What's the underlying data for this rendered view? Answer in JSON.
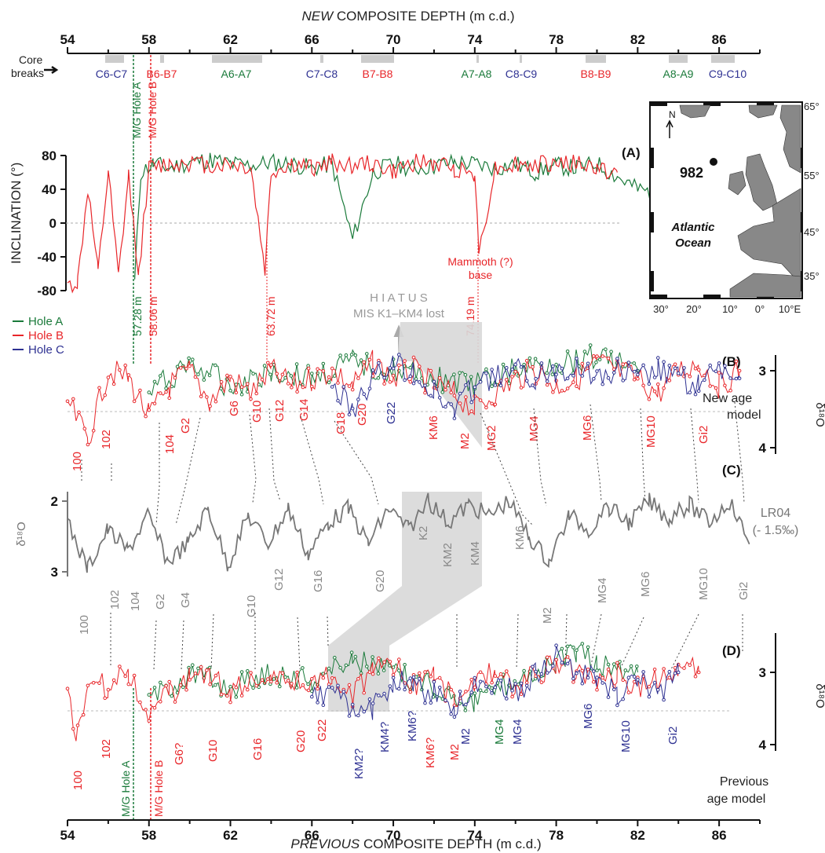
{
  "top_axis": {
    "title_italic": "NEW",
    "title_rest": " COMPOSITE  DEPTH  (m c.d.)",
    "ticks": [
      "54",
      "58",
      "62",
      "66",
      "70",
      "74",
      "78",
      "82",
      "86"
    ]
  },
  "bottom_axis": {
    "title_italic": "PREVIOUS",
    "title_rest": " COMPOSITE  DEPTH  (m c.d.)",
    "ticks": [
      "54",
      "58",
      "62",
      "66",
      "70",
      "74",
      "78",
      "82",
      "86"
    ]
  },
  "core_breaks": {
    "label_line1": "Core",
    "label_line2": "breaks",
    "items": [
      {
        "label": "C6-C7",
        "color": "#2e3192"
      },
      {
        "label": "B6-B7",
        "color": "#e8262a"
      },
      {
        "label": "A6-A7",
        "color": "#1a7a3a"
      },
      {
        "label": "C7-C8",
        "color": "#2e3192"
      },
      {
        "label": "B7-B8",
        "color": "#e8262a"
      },
      {
        "label": "A7-A8",
        "color": "#1a7a3a"
      },
      {
        "label": "C8-C9",
        "color": "#2e3192"
      },
      {
        "label": "B8-B9",
        "color": "#e8262a"
      },
      {
        "label": "A8-A9",
        "color": "#1a7a3a"
      },
      {
        "label": "C9-C10",
        "color": "#2e3192"
      }
    ]
  },
  "colors": {
    "hole_a": "#1a7a3a",
    "hole_b": "#e8262a",
    "hole_c": "#2e3192",
    "lr04": "#777777",
    "grey_band": "#d8d8d8"
  },
  "annotations": {
    "mg_hole_a": "M/G Hole A",
    "mg_hole_b": "M/G Hole B",
    "depth_5728": "57.28 m",
    "depth_5806": "58.06 m",
    "depth_6372": "63.72 m",
    "depth_7419": "74.19 m",
    "mammoth_1": "Mammoth (?)",
    "mammoth_2": "base",
    "hiatus_1": "H I A T U S",
    "hiatus_2": "MIS K1–KM4 lost",
    "mg_hole_a_d": "M/G Hole A",
    "mg_hole_b_d": "M/G Hole B"
  },
  "legend": {
    "hole_a": "Hole A",
    "hole_b": "Hole B",
    "hole_c": "Hole C"
  },
  "panel_a": {
    "label": "(A)",
    "ylabel": "INCLINATION (°)",
    "yticks": [
      "80",
      "40",
      "0",
      "-40",
      "-80"
    ]
  },
  "panel_b": {
    "label": "(B)",
    "right_label_1": "New age",
    "right_label_2": "model",
    "yticks": [
      "3",
      "4"
    ],
    "ylabel": "δ¹⁸O",
    "stage_labels": [
      {
        "text": "100",
        "color": "#e8262a"
      },
      {
        "text": "102",
        "color": "#e8262a"
      },
      {
        "text": "104",
        "color": "#e8262a"
      },
      {
        "text": "G2",
        "color": "#e8262a"
      },
      {
        "text": "G6",
        "color": "#e8262a"
      },
      {
        "text": "G10",
        "color": "#e8262a"
      },
      {
        "text": "G12",
        "color": "#e8262a"
      },
      {
        "text": "G14",
        "color": "#e8262a"
      },
      {
        "text": "G18",
        "color": "#e8262a"
      },
      {
        "text": "G20",
        "color": "#e8262a"
      },
      {
        "text": "G22",
        "color": "#2e3192"
      },
      {
        "text": "KM6",
        "color": "#e8262a"
      },
      {
        "text": "M2",
        "color": "#e8262a"
      },
      {
        "text": "MG2",
        "color": "#e8262a"
      },
      {
        "text": "MG4",
        "color": "#e8262a"
      },
      {
        "text": "MG6",
        "color": "#e8262a"
      },
      {
        "text": "MG10",
        "color": "#e8262a"
      },
      {
        "text": "Gi2",
        "color": "#e8262a"
      }
    ]
  },
  "panel_c": {
    "label": "(C)",
    "right_label_1": "LR04",
    "right_label_2": "(- 1.5‰)",
    "yticks": [
      "2",
      "3"
    ],
    "ylabel": "δ¹⁸O",
    "stage_labels": [
      "100",
      "102",
      "104",
      "G2",
      "G4",
      "G10",
      "G12",
      "G16",
      "G20",
      "K2",
      "KM2",
      "KM4",
      "KM6",
      "M2",
      "MG4",
      "MG6",
      "MG10",
      "Gi2"
    ]
  },
  "panel_d": {
    "label": "(D)",
    "right_label_1": "Previous",
    "right_label_2": "age model",
    "yticks": [
      "3",
      "4"
    ],
    "ylabel": "δ¹⁸O",
    "stage_labels": [
      {
        "text": "100",
        "color": "#e8262a"
      },
      {
        "text": "102",
        "color": "#e8262a"
      },
      {
        "text": "G6?",
        "color": "#e8262a"
      },
      {
        "text": "G10",
        "color": "#e8262a"
      },
      {
        "text": "G16",
        "color": "#e8262a"
      },
      {
        "text": "G20",
        "color": "#e8262a"
      },
      {
        "text": "G22",
        "color": "#e8262a"
      },
      {
        "text": "KM2?",
        "color": "#2e3192"
      },
      {
        "text": "KM4?",
        "color": "#2e3192"
      },
      {
        "text": "KM6?",
        "color": "#2e3192"
      },
      {
        "text": "KM6?",
        "color": "#e8262a"
      },
      {
        "text": "M2",
        "color": "#e8262a"
      },
      {
        "text": "M2",
        "color": "#2e3192"
      },
      {
        "text": "MG4",
        "color": "#1a7a3a"
      },
      {
        "text": "MG4",
        "color": "#2e3192"
      },
      {
        "text": "MG6",
        "color": "#2e3192"
      },
      {
        "text": "MG10",
        "color": "#2e3192"
      },
      {
        "text": "Gi2",
        "color": "#2e3192"
      }
    ]
  },
  "map": {
    "site": "982",
    "ocean_1": "Atlantic",
    "ocean_2": "Ocean",
    "north": "N",
    "lat_ticks": [
      "65°",
      "55°",
      "45°",
      "35°"
    ],
    "lon_ticks": [
      "30°",
      "20°",
      "10°",
      "0°",
      "10°E"
    ]
  },
  "chart_data": [
    {
      "type": "line",
      "title": "(A)",
      "xlabel": "NEW COMPOSITE DEPTH (m c.d.)",
      "ylabel": "INCLINATION (°)",
      "xlim": [
        54,
        88
      ],
      "ylim": [
        -80,
        80
      ],
      "series": [
        {
          "name": "Hole A",
          "x": [
            57.3,
            57.6,
            58.2,
            59,
            60,
            61,
            62,
            63,
            64,
            65,
            66,
            67,
            68,
            69,
            70,
            71,
            72,
            73,
            74,
            75,
            76,
            77,
            78,
            79,
            80,
            81,
            82,
            83,
            84,
            85
          ],
          "y": [
            -70,
            60,
            70,
            65,
            72,
            75,
            70,
            68,
            72,
            70,
            65,
            70,
            -20,
            60,
            70,
            65,
            68,
            72,
            70,
            65,
            70,
            60,
            68,
            65,
            70,
            55,
            40,
            35,
            45,
            60
          ]
        },
        {
          "name": "Hole B",
          "x": [
            54,
            54.5,
            55,
            55.5,
            56,
            56.5,
            57,
            57.5,
            58,
            59,
            60,
            61,
            62,
            63,
            63.7,
            64,
            65,
            66,
            67,
            68,
            69,
            70,
            71,
            72,
            73,
            74,
            74.2,
            75,
            76,
            77,
            78,
            79,
            80,
            81
          ],
          "y": [
            -75,
            -70,
            40,
            -60,
            60,
            -65,
            55,
            -60,
            65,
            70,
            72,
            68,
            70,
            65,
            -55,
            60,
            70,
            65,
            72,
            68,
            70,
            60,
            72,
            70,
            65,
            60,
            -35,
            65,
            70,
            68,
            72,
            70,
            65,
            60
          ]
        }
      ]
    },
    {
      "type": "line",
      "title": "(B)",
      "ylabel": "δ¹⁸O",
      "xlim": [
        54,
        88
      ],
      "ylim": [
        4,
        2.4
      ],
      "series": [
        {
          "name": "Hole A",
          "x": [
            58,
            60,
            62,
            64,
            66,
            68,
            70,
            72,
            74,
            76,
            78,
            80,
            82
          ],
          "y": [
            3.3,
            2.9,
            3.2,
            3.0,
            3.1,
            2.9,
            3.0,
            3.1,
            3.2,
            3.0,
            2.9,
            2.8,
            3.0
          ]
        },
        {
          "name": "Hole B",
          "x": [
            54,
            55,
            56,
            57,
            58,
            59,
            60,
            61,
            62,
            63,
            64,
            65,
            66,
            67,
            68,
            69,
            70,
            71,
            72,
            73,
            74,
            75,
            76,
            77,
            78,
            79,
            80,
            81,
            82,
            83,
            84,
            85,
            86,
            87
          ],
          "y": [
            3.4,
            3.9,
            3.0,
            3.1,
            3.6,
            3.2,
            3.0,
            3.4,
            3.1,
            3.3,
            3.0,
            3.2,
            3.1,
            3.0,
            3.2,
            2.9,
            3.1,
            3.0,
            3.2,
            3.3,
            3.5,
            3.3,
            3.1,
            3.0,
            3.2,
            3.1,
            2.9,
            3.0,
            3.1,
            3.3,
            3.0,
            2.9,
            3.2,
            3.0
          ]
        },
        {
          "name": "Hole C",
          "x": [
            67,
            68,
            69,
            70,
            71,
            72,
            73,
            74,
            75,
            76,
            77,
            78,
            79,
            80,
            81,
            82,
            83,
            84,
            85,
            86,
            87
          ],
          "y": [
            3.2,
            3.5,
            3.1,
            2.9,
            3.0,
            3.3,
            3.5,
            3.2,
            3.1,
            3.0,
            3.1,
            3.0,
            2.9,
            3.1,
            3.0,
            3.1,
            3.0,
            3.1,
            3.2,
            3.0,
            3.1
          ]
        }
      ]
    },
    {
      "type": "line",
      "title": "(C)",
      "ylabel": "δ¹⁸O",
      "series": [
        {
          "name": "LR04",
          "x": [
            0,
            1,
            2,
            3,
            4,
            5,
            6,
            7,
            8,
            9,
            10,
            11,
            12,
            13,
            14,
            15,
            16,
            17,
            18,
            19,
            20,
            21,
            22,
            23,
            24,
            25,
            26,
            27,
            28,
            29,
            30,
            31,
            32,
            33,
            34
          ],
          "y": [
            2.3,
            2.95,
            2.4,
            2.7,
            2.2,
            2.85,
            2.6,
            2.1,
            2.9,
            2.2,
            2.6,
            2.1,
            2.75,
            2.3,
            2.1,
            2.6,
            2.1,
            2.4,
            2.0,
            2.3,
            2.05,
            2.2,
            2.0,
            2.5,
            2.85,
            2.2,
            2.4,
            2.1,
            2.3,
            2.0,
            2.25,
            2.05,
            2.3,
            2.0,
            2.6
          ]
        }
      ]
    },
    {
      "type": "line",
      "title": "(D)",
      "xlabel": "PREVIOUS COMPOSITE DEPTH (m c.d.)",
      "ylabel": "δ¹⁸O",
      "xlim": [
        54,
        88
      ],
      "ylim": [
        4,
        2.4
      ],
      "series": [
        {
          "name": "Hole A",
          "x": [
            58,
            60,
            62,
            64,
            66,
            68,
            70,
            72,
            74,
            76,
            78,
            79,
            80,
            82
          ],
          "y": [
            3.4,
            3.0,
            3.2,
            3.0,
            3.1,
            2.8,
            3.0,
            3.2,
            3.4,
            3.1,
            2.9,
            2.7,
            2.9,
            3.0
          ]
        },
        {
          "name": "Hole B",
          "x": [
            54,
            54.5,
            55,
            56,
            57,
            58,
            59,
            60,
            61,
            62,
            63,
            64,
            65,
            66,
            67,
            68,
            69,
            70,
            71,
            72,
            73,
            74,
            75,
            76,
            77,
            78,
            79,
            80,
            81,
            82,
            83,
            84,
            85
          ],
          "y": [
            3.3,
            3.9,
            3.1,
            3.2,
            3.0,
            3.6,
            3.3,
            3.1,
            3.0,
            3.3,
            3.1,
            3.0,
            3.2,
            3.1,
            3.0,
            3.3,
            3.0,
            2.9,
            3.2,
            3.0,
            3.4,
            3.1,
            3.0,
            3.2,
            3.0,
            2.9,
            3.0,
            3.1,
            3.0,
            3.2,
            3.1,
            2.9,
            3.0
          ]
        },
        {
          "name": "Hole C",
          "x": [
            66,
            67,
            68,
            69,
            70,
            71,
            72,
            73,
            74,
            75,
            76,
            77,
            78,
            79,
            80,
            81,
            82,
            83,
            84
          ],
          "y": [
            3.4,
            3.2,
            3.6,
            3.5,
            3.1,
            3.2,
            3.3,
            3.5,
            3.2,
            3.1,
            3.3,
            3.0,
            2.8,
            3.0,
            3.1,
            3.3,
            3.1,
            3.3,
            3.0
          ]
        }
      ]
    }
  ]
}
